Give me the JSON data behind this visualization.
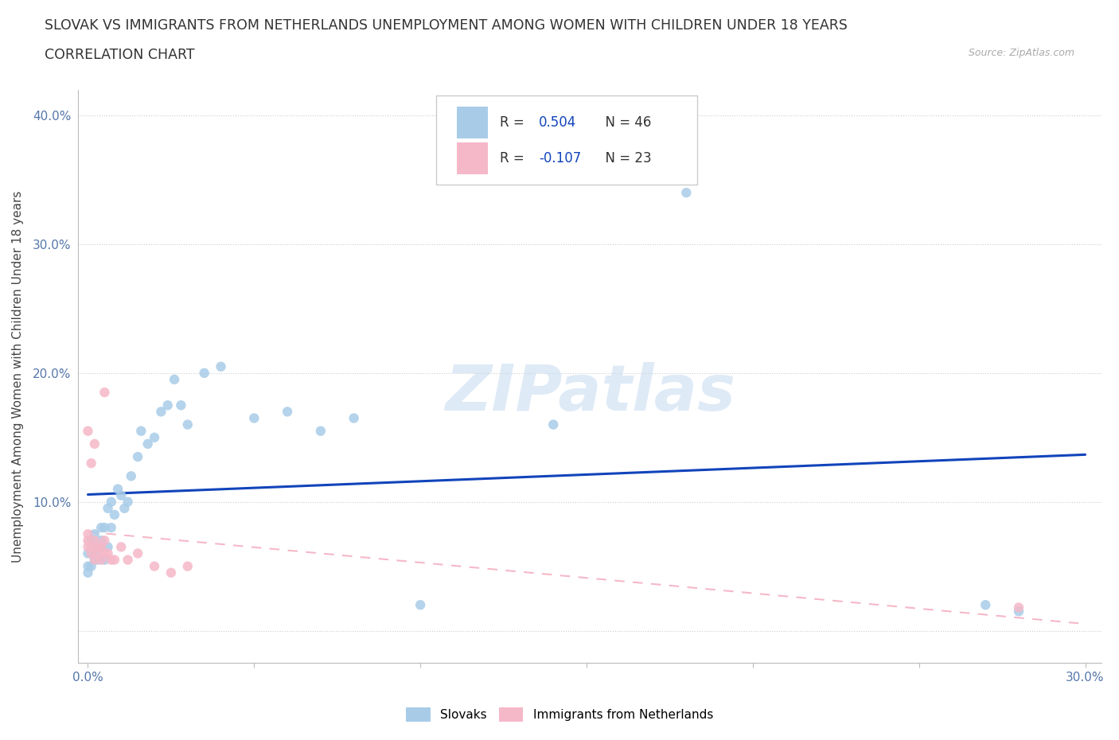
{
  "title_line1": "SLOVAK VS IMMIGRANTS FROM NETHERLANDS UNEMPLOYMENT AMONG WOMEN WITH CHILDREN UNDER 18 YEARS",
  "title_line2": "CORRELATION CHART",
  "source_text": "Source: ZipAtlas.com",
  "ylabel": "Unemployment Among Women with Children Under 18 years",
  "xlim": [
    -0.003,
    0.305
  ],
  "ylim": [
    -0.025,
    0.42
  ],
  "xticks": [
    0.0,
    0.05,
    0.1,
    0.15,
    0.2,
    0.25,
    0.3
  ],
  "yticks": [
    0.0,
    0.1,
    0.2,
    0.3,
    0.4
  ],
  "ytick_labels": [
    "",
    "10.0%",
    "20.0%",
    "30.0%",
    "40.0%"
  ],
  "xtick_labels": [
    "0.0%",
    "",
    "",
    "",
    "",
    "",
    "30.0%"
  ],
  "slovak_R": 0.504,
  "slovak_N": 46,
  "dutch_R": -0.107,
  "dutch_N": 23,
  "slovak_color": "#A8CCE8",
  "dutch_color": "#F5B8C8",
  "slovak_line_color": "#1144BB",
  "dutch_line_color": "#F5B8C8",
  "watermark": "ZIPatlas",
  "watermark_color": "#C8DCF0",
  "slovak_label": "Slovaks",
  "dutch_label": "Immigrants from Netherlands",
  "slovak_x": [
    0.0,
    0.0,
    0.0,
    0.001,
    0.001,
    0.001,
    0.002,
    0.002,
    0.002,
    0.003,
    0.003,
    0.004,
    0.004,
    0.004,
    0.005,
    0.005,
    0.006,
    0.006,
    0.007,
    0.007,
    0.008,
    0.009,
    0.01,
    0.011,
    0.012,
    0.013,
    0.015,
    0.016,
    0.018,
    0.02,
    0.022,
    0.024,
    0.026,
    0.028,
    0.03,
    0.035,
    0.04,
    0.05,
    0.06,
    0.07,
    0.08,
    0.1,
    0.14,
    0.18,
    0.27,
    0.28
  ],
  "slovak_y": [
    0.05,
    0.045,
    0.06,
    0.05,
    0.06,
    0.07,
    0.055,
    0.06,
    0.075,
    0.055,
    0.065,
    0.065,
    0.07,
    0.08,
    0.055,
    0.08,
    0.065,
    0.095,
    0.08,
    0.1,
    0.09,
    0.11,
    0.105,
    0.095,
    0.1,
    0.12,
    0.135,
    0.155,
    0.145,
    0.15,
    0.17,
    0.175,
    0.195,
    0.175,
    0.16,
    0.2,
    0.205,
    0.165,
    0.17,
    0.155,
    0.165,
    0.02,
    0.16,
    0.34,
    0.02,
    0.015
  ],
  "dutch_x": [
    0.0,
    0.0,
    0.0,
    0.001,
    0.001,
    0.002,
    0.002,
    0.003,
    0.003,
    0.004,
    0.004,
    0.005,
    0.005,
    0.006,
    0.007,
    0.008,
    0.01,
    0.012,
    0.015,
    0.02,
    0.025,
    0.03,
    0.28
  ],
  "dutch_y": [
    0.065,
    0.07,
    0.075,
    0.06,
    0.065,
    0.055,
    0.07,
    0.065,
    0.06,
    0.055,
    0.065,
    0.06,
    0.07,
    0.06,
    0.055,
    0.055,
    0.065,
    0.055,
    0.06,
    0.05,
    0.045,
    0.05,
    0.018
  ]
}
